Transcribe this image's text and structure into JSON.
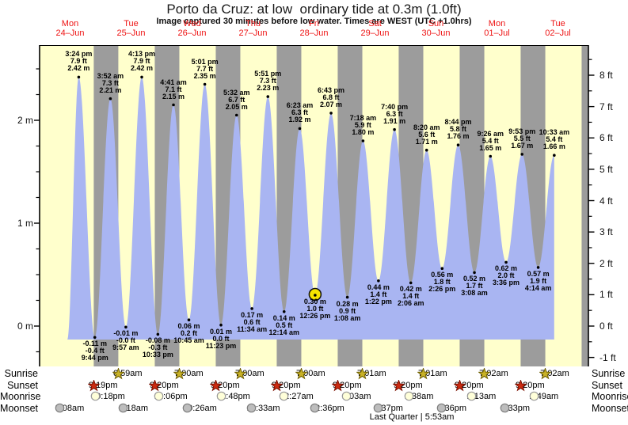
{
  "chart_data": {
    "type": "area",
    "title": "Porto da Cruz: at low  ordinary tide at 0.3m (1.0ft)",
    "subtitle": "Image captured 30 minutes before low water. Times are WEST (UTC +1.0hrs)",
    "footer": "Last Quarter | 5:53am",
    "days": [
      {
        "name": "Mon",
        "date": "24–Jun"
      },
      {
        "name": "Tue",
        "date": "25–Jun"
      },
      {
        "name": "Wed",
        "date": "26–Jun"
      },
      {
        "name": "Thu",
        "date": "27–Jun"
      },
      {
        "name": "Fri",
        "date": "28–Jun"
      },
      {
        "name": "Sat",
        "date": "29–Jun"
      },
      {
        "name": "Sun",
        "date": "30–Jun"
      },
      {
        "name": "Mon",
        "date": "01–Jul"
      },
      {
        "name": "Tue",
        "date": "02–Jul"
      }
    ],
    "y_axis": {
      "left": [
        {
          "value": 0,
          "label": "0 m"
        },
        {
          "value": 1,
          "label": "1 m"
        },
        {
          "value": 2,
          "label": "2 m"
        }
      ],
      "right": [
        {
          "value": -1,
          "label": "-1 ft"
        },
        {
          "value": 0,
          "label": "0 ft"
        },
        {
          "value": 1,
          "label": "1 ft"
        },
        {
          "value": 2,
          "label": "2 ft"
        },
        {
          "value": 3,
          "label": "3 ft"
        },
        {
          "value": 4,
          "label": "4 ft"
        },
        {
          "value": 5,
          "label": "5 ft"
        },
        {
          "value": 6,
          "label": "6 ft"
        },
        {
          "value": 7,
          "label": "7 ft"
        },
        {
          "value": 8,
          "label": "8 ft"
        }
      ]
    },
    "points": [
      {
        "kind": "high",
        "day": 0,
        "time": "3:24 pm",
        "ft": "7.9 ft",
        "m": "2.42 m",
        "height_m": 2.42
      },
      {
        "kind": "low",
        "day": 0,
        "time": "9:44 pm",
        "ft": "-0.4 ft",
        "m": "-0.11 m",
        "height_m": -0.11
      },
      {
        "kind": "high",
        "day": 1,
        "time": "3:52 am",
        "ft": "7.3 ft",
        "m": "2.21 m",
        "height_m": 2.21
      },
      {
        "kind": "low",
        "day": 1,
        "time": "9:57 am",
        "ft": "-0.0 ft",
        "m": "-0.01 m",
        "height_m": -0.01
      },
      {
        "kind": "high",
        "day": 1,
        "time": "4:13 pm",
        "ft": "7.9 ft",
        "m": "2.42 m",
        "height_m": 2.42
      },
      {
        "kind": "low",
        "day": 1,
        "time": "10:33 pm",
        "ft": "-0.3 ft",
        "m": "-0.08 m",
        "height_m": -0.08
      },
      {
        "kind": "high",
        "day": 2,
        "time": "4:41 am",
        "ft": "7.1 ft",
        "m": "2.15 m",
        "height_m": 2.15
      },
      {
        "kind": "low",
        "day": 2,
        "time": "10:45 am",
        "ft": "0.2 ft",
        "m": "0.06 m",
        "height_m": 0.06
      },
      {
        "kind": "high",
        "day": 2,
        "time": "5:01 pm",
        "ft": "7.7 ft",
        "m": "2.35 m",
        "height_m": 2.35
      },
      {
        "kind": "low",
        "day": 2,
        "time": "11:23 pm",
        "ft": "0.0 ft",
        "m": "0.01 m",
        "height_m": 0.01
      },
      {
        "kind": "high",
        "day": 3,
        "time": "5:32 am",
        "ft": "6.7 ft",
        "m": "2.05 m",
        "height_m": 2.05
      },
      {
        "kind": "low",
        "day": 3,
        "time": "11:34 am",
        "ft": "0.6 ft",
        "m": "0.17 m",
        "height_m": 0.17
      },
      {
        "kind": "high",
        "day": 3,
        "time": "5:51 pm",
        "ft": "7.3 ft",
        "m": "2.23 m",
        "height_m": 2.23
      },
      {
        "kind": "low",
        "day": 4,
        "time": "12:14 am",
        "ft": "0.5 ft",
        "m": "0.14 m",
        "height_m": 0.14
      },
      {
        "kind": "high",
        "day": 4,
        "time": "6:23 am",
        "ft": "6.3 ft",
        "m": "1.92 m",
        "height_m": 1.92
      },
      {
        "kind": "low",
        "day": 4,
        "time": "12:26 pm",
        "ft": "1.0 ft",
        "m": "0.30 m",
        "height_m": 0.3,
        "highlighted": true
      },
      {
        "kind": "high",
        "day": 4,
        "time": "6:43 pm",
        "ft": "6.8 ft",
        "m": "2.07 m",
        "height_m": 2.07
      },
      {
        "kind": "low",
        "day": 5,
        "time": "1:08 am",
        "ft": "0.9 ft",
        "m": "0.28 m",
        "height_m": 0.28
      },
      {
        "kind": "high",
        "day": 5,
        "time": "7:18 am",
        "ft": "5.9 ft",
        "m": "1.80 m",
        "height_m": 1.8
      },
      {
        "kind": "low",
        "day": 5,
        "time": "1:22 pm",
        "ft": "1.4 ft",
        "m": "0.44 m",
        "height_m": 0.44
      },
      {
        "kind": "high",
        "day": 5,
        "time": "7:40 pm",
        "ft": "6.3 ft",
        "m": "1.91 m",
        "height_m": 1.91
      },
      {
        "kind": "low",
        "day": 6,
        "time": "2:06 am",
        "ft": "1.4 ft",
        "m": "0.42 m",
        "height_m": 0.42
      },
      {
        "kind": "high",
        "day": 6,
        "time": "8:20 am",
        "ft": "5.6 ft",
        "m": "1.71 m",
        "height_m": 1.71
      },
      {
        "kind": "low",
        "day": 6,
        "time": "2:26 pm",
        "ft": "1.8 ft",
        "m": "0.56 m",
        "height_m": 0.56
      },
      {
        "kind": "high",
        "day": 6,
        "time": "8:44 pm",
        "ft": "5.8 ft",
        "m": "1.76 m",
        "height_m": 1.76
      },
      {
        "kind": "low",
        "day": 7,
        "time": "3:08 am",
        "ft": "1.7 ft",
        "m": "0.52 m",
        "height_m": 0.52
      },
      {
        "kind": "high",
        "day": 7,
        "time": "9:26 am",
        "ft": "5.4 ft",
        "m": "1.65 m",
        "height_m": 1.65
      },
      {
        "kind": "low",
        "day": 7,
        "time": "3:36 pm",
        "ft": "2.0 ft",
        "m": "0.62 m",
        "height_m": 0.62
      },
      {
        "kind": "high",
        "day": 7,
        "time": "9:53 pm",
        "ft": "5.5 ft",
        "m": "1.67 m",
        "height_m": 1.67
      },
      {
        "kind": "low",
        "day": 8,
        "time": "4:14 am",
        "ft": "1.9 ft",
        "m": "0.57 m",
        "height_m": 0.57
      },
      {
        "kind": "high",
        "day": 8,
        "time": "10:33 am",
        "ft": "5.4 ft",
        "m": "1.66 m",
        "height_m": 1.66
      }
    ],
    "sun_moon": {
      "row_labels": [
        {
          "id": "sunrise",
          "label": "Sunrise"
        },
        {
          "id": "sunset",
          "label": "Sunset"
        },
        {
          "id": "moonrise",
          "label": "Moonrise"
        },
        {
          "id": "moonset",
          "label": "Moonset"
        }
      ],
      "sunrise": [
        {
          "day": 1,
          "time": "6:59am"
        },
        {
          "day": 2,
          "time": "7:00am"
        },
        {
          "day": 3,
          "time": "7:00am"
        },
        {
          "day": 4,
          "time": "7:00am"
        },
        {
          "day": 5,
          "time": "7:01am"
        },
        {
          "day": 6,
          "time": "7:01am"
        },
        {
          "day": 7,
          "time": "7:02am"
        },
        {
          "day": 8,
          "time": "7:02am"
        }
      ],
      "sunset": [
        {
          "day": 0,
          "time": "9:19pm"
        },
        {
          "day": 1,
          "time": "9:20pm"
        },
        {
          "day": 2,
          "time": "9:20pm"
        },
        {
          "day": 3,
          "time": "9:20pm"
        },
        {
          "day": 4,
          "time": "9:20pm"
        },
        {
          "day": 5,
          "time": "9:20pm"
        },
        {
          "day": 6,
          "time": "9:20pm"
        },
        {
          "day": 7,
          "time": "9:20pm"
        }
      ],
      "moonrise": [
        {
          "day": 0,
          "time": "10:18pm"
        },
        {
          "day": 1,
          "time": "11:06pm"
        },
        {
          "day": 2,
          "time": "11:48pm"
        },
        {
          "day": 4,
          "time": "12:27am"
        },
        {
          "day": 5,
          "time": "1:03am"
        },
        {
          "day": 6,
          "time": "1:38am"
        },
        {
          "day": 7,
          "time": "2:13am"
        },
        {
          "day": 8,
          "time": "2:49am"
        }
      ],
      "moonset": [
        {
          "day": 0,
          "time": "8:08am"
        },
        {
          "day": 1,
          "time": "9:18am"
        },
        {
          "day": 2,
          "time": "10:26am"
        },
        {
          "day": 3,
          "time": "11:33am"
        },
        {
          "day": 4,
          "time": "12:36pm"
        },
        {
          "day": 5,
          "time": "1:37pm"
        },
        {
          "day": 6,
          "time": "2:36pm"
        },
        {
          "day": 7,
          "time": "3:33pm"
        }
      ],
      "extra_night_band": {
        "day": 8,
        "time": "9:20pm"
      }
    },
    "colors": {
      "plot_bg": "#ffffcc",
      "night_band": "#9c9c9c",
      "tide_fill": "#a9b5f2",
      "day_label": "#ee1414",
      "highlight": "#f5e400",
      "sunrise_star": "#c9b227",
      "sunrise_star_border": "#6e5f00",
      "sunset_star": "#cc2b11",
      "sunset_star_border": "#7a1000",
      "moonrise_fill": "#ffffd9",
      "moonrise_border": "#999999",
      "moonset_fill": "#bdbdbd",
      "moonset_border": "#7d7d7d"
    }
  }
}
